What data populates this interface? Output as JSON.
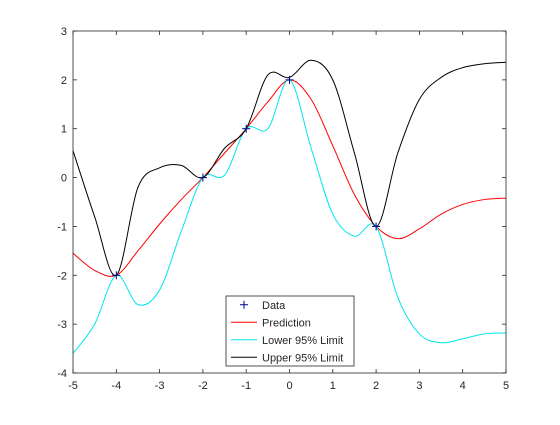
{
  "chart_data": {
    "type": "line",
    "title": "",
    "xlabel": "",
    "ylabel": "",
    "xlim": [
      -5,
      5
    ],
    "ylim": [
      -4,
      3
    ],
    "xticks": [
      "-5",
      "-4",
      "-3",
      "-2",
      "-1",
      "0",
      "1",
      "2",
      "3",
      "4",
      "5"
    ],
    "yticks": [
      "-4",
      "-3",
      "-2",
      "-1",
      "0",
      "1",
      "2",
      "3"
    ],
    "grid": false,
    "legend_location": "bottom-center",
    "series": [
      {
        "name": "Data",
        "kind": "marker",
        "marker": "+",
        "color": "#00008b",
        "x": [
          -4,
          -2,
          -1,
          0,
          2
        ],
        "y": [
          -2,
          0,
          1,
          2,
          -1
        ]
      },
      {
        "name": "Prediction",
        "kind": "line",
        "color": "#ff0000",
        "x": [
          -5,
          -4.5,
          -4,
          -3.5,
          -3,
          -2.5,
          -2,
          -1.5,
          -1,
          -0.5,
          0,
          0.5,
          1,
          1.5,
          2,
          2.5,
          3,
          3.5,
          4,
          4.5,
          5
        ],
        "y": [
          -1.55,
          -1.9,
          -2.0,
          -1.5,
          -0.95,
          -0.45,
          0.0,
          0.5,
          1.0,
          1.55,
          2.0,
          1.6,
          0.65,
          -0.35,
          -1.0,
          -1.25,
          -1.05,
          -0.75,
          -0.55,
          -0.45,
          -0.42
        ]
      },
      {
        "name": "Lower 95% Limit",
        "kind": "line",
        "color": "#00e5ee",
        "x": [
          -5,
          -4.5,
          -4,
          -3.5,
          -3,
          -2.5,
          -2,
          -1.5,
          -1,
          -0.5,
          0,
          0.5,
          1,
          1.5,
          2,
          2.5,
          3,
          3.5,
          4,
          4.5,
          5
        ],
        "y": [
          -3.6,
          -3.0,
          -2.0,
          -2.6,
          -2.3,
          -1.1,
          0.0,
          0.05,
          1.0,
          1.0,
          2.0,
          0.6,
          -0.75,
          -1.2,
          -1.0,
          -2.45,
          -3.2,
          -3.38,
          -3.3,
          -3.2,
          -3.18
        ]
      },
      {
        "name": "Upper 95% Limit",
        "kind": "line",
        "color": "#000000",
        "x": [
          -5,
          -4.5,
          -4,
          -3.5,
          -3,
          -2.5,
          -2,
          -1.5,
          -1,
          -0.5,
          0,
          0.5,
          1,
          1.5,
          2,
          2.5,
          3,
          3.5,
          4,
          4.5,
          5
        ],
        "y": [
          0.55,
          -0.8,
          -2.0,
          -0.2,
          0.2,
          0.25,
          0.0,
          0.6,
          1.0,
          2.1,
          2.05,
          2.4,
          2.0,
          0.5,
          -1.0,
          0.5,
          1.6,
          2.05,
          2.25,
          2.33,
          2.36
        ]
      }
    ]
  }
}
